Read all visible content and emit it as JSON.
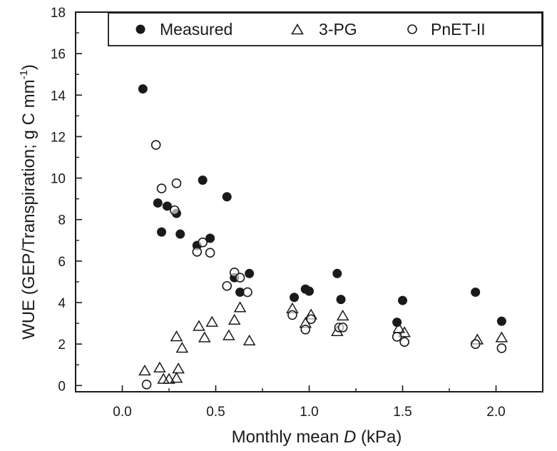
{
  "chart_data": {
    "type": "scatter",
    "xlabel_parts": {
      "before": "Monthly mean ",
      "italic": "D",
      "after": " (kPa)"
    },
    "ylabel_parts": {
      "main": "WUE (GEP/Transpiration; g C mm",
      "sup": "-1",
      "end": ")"
    },
    "xlim": [
      -0.25,
      2.25
    ],
    "ylim": [
      -0.3,
      18
    ],
    "xticks": [
      0.0,
      0.5,
      1.0,
      1.5,
      2.0
    ],
    "xtick_labels": [
      "0.0",
      "0.5",
      "1.0",
      "1.5",
      "2.0"
    ],
    "yticks": [
      0,
      2,
      4,
      6,
      8,
      10,
      12,
      14,
      16,
      18
    ],
    "ytick_labels": [
      "0",
      "2",
      "4",
      "6",
      "8",
      "10",
      "12",
      "14",
      "16",
      "18"
    ],
    "legend_position": "top",
    "series": [
      {
        "name": "Measured",
        "marker": "filled-circle",
        "points": [
          [
            0.11,
            14.3
          ],
          [
            0.19,
            8.8
          ],
          [
            0.21,
            7.4
          ],
          [
            0.24,
            8.65
          ],
          [
            0.29,
            8.3
          ],
          [
            0.31,
            7.3
          ],
          [
            0.4,
            6.75
          ],
          [
            0.43,
            9.9
          ],
          [
            0.47,
            7.1
          ],
          [
            0.56,
            9.1
          ],
          [
            0.6,
            5.2
          ],
          [
            0.63,
            4.5
          ],
          [
            0.68,
            5.4
          ],
          [
            0.92,
            4.25
          ],
          [
            0.98,
            4.65
          ],
          [
            1.0,
            4.55
          ],
          [
            1.15,
            5.4
          ],
          [
            1.17,
            4.15
          ],
          [
            1.47,
            3.05
          ],
          [
            1.5,
            4.1
          ],
          [
            1.89,
            4.5
          ],
          [
            2.03,
            3.1
          ]
        ]
      },
      {
        "name": "3-PG",
        "marker": "open-triangle",
        "points": [
          [
            0.12,
            0.7
          ],
          [
            0.2,
            0.85
          ],
          [
            0.22,
            0.3
          ],
          [
            0.25,
            0.3
          ],
          [
            0.29,
            0.35
          ],
          [
            0.29,
            2.35
          ],
          [
            0.3,
            0.8
          ],
          [
            0.32,
            1.8
          ],
          [
            0.41,
            2.85
          ],
          [
            0.44,
            2.3
          ],
          [
            0.48,
            3.05
          ],
          [
            0.57,
            2.4
          ],
          [
            0.6,
            3.15
          ],
          [
            0.63,
            3.75
          ],
          [
            0.68,
            2.15
          ],
          [
            0.91,
            3.7
          ],
          [
            0.98,
            3.0
          ],
          [
            1.01,
            3.4
          ],
          [
            1.15,
            2.6
          ],
          [
            1.18,
            3.35
          ],
          [
            1.48,
            2.75
          ],
          [
            1.51,
            2.55
          ],
          [
            1.9,
            2.2
          ],
          [
            2.03,
            2.3
          ]
        ]
      },
      {
        "name": "PnET-II",
        "marker": "open-circle",
        "points": [
          [
            0.13,
            0.05
          ],
          [
            0.18,
            11.6
          ],
          [
            0.21,
            9.5
          ],
          [
            0.28,
            8.45
          ],
          [
            0.29,
            9.75
          ],
          [
            0.4,
            6.45
          ],
          [
            0.43,
            6.9
          ],
          [
            0.47,
            6.4
          ],
          [
            0.56,
            4.8
          ],
          [
            0.6,
            5.45
          ],
          [
            0.63,
            5.2
          ],
          [
            0.67,
            4.5
          ],
          [
            0.91,
            3.4
          ],
          [
            0.98,
            2.7
          ],
          [
            1.01,
            3.2
          ],
          [
            1.16,
            2.8
          ],
          [
            1.18,
            2.8
          ],
          [
            1.47,
            2.35
          ],
          [
            1.51,
            2.1
          ],
          [
            1.89,
            2.0
          ],
          [
            2.03,
            1.8
          ]
        ]
      }
    ]
  }
}
